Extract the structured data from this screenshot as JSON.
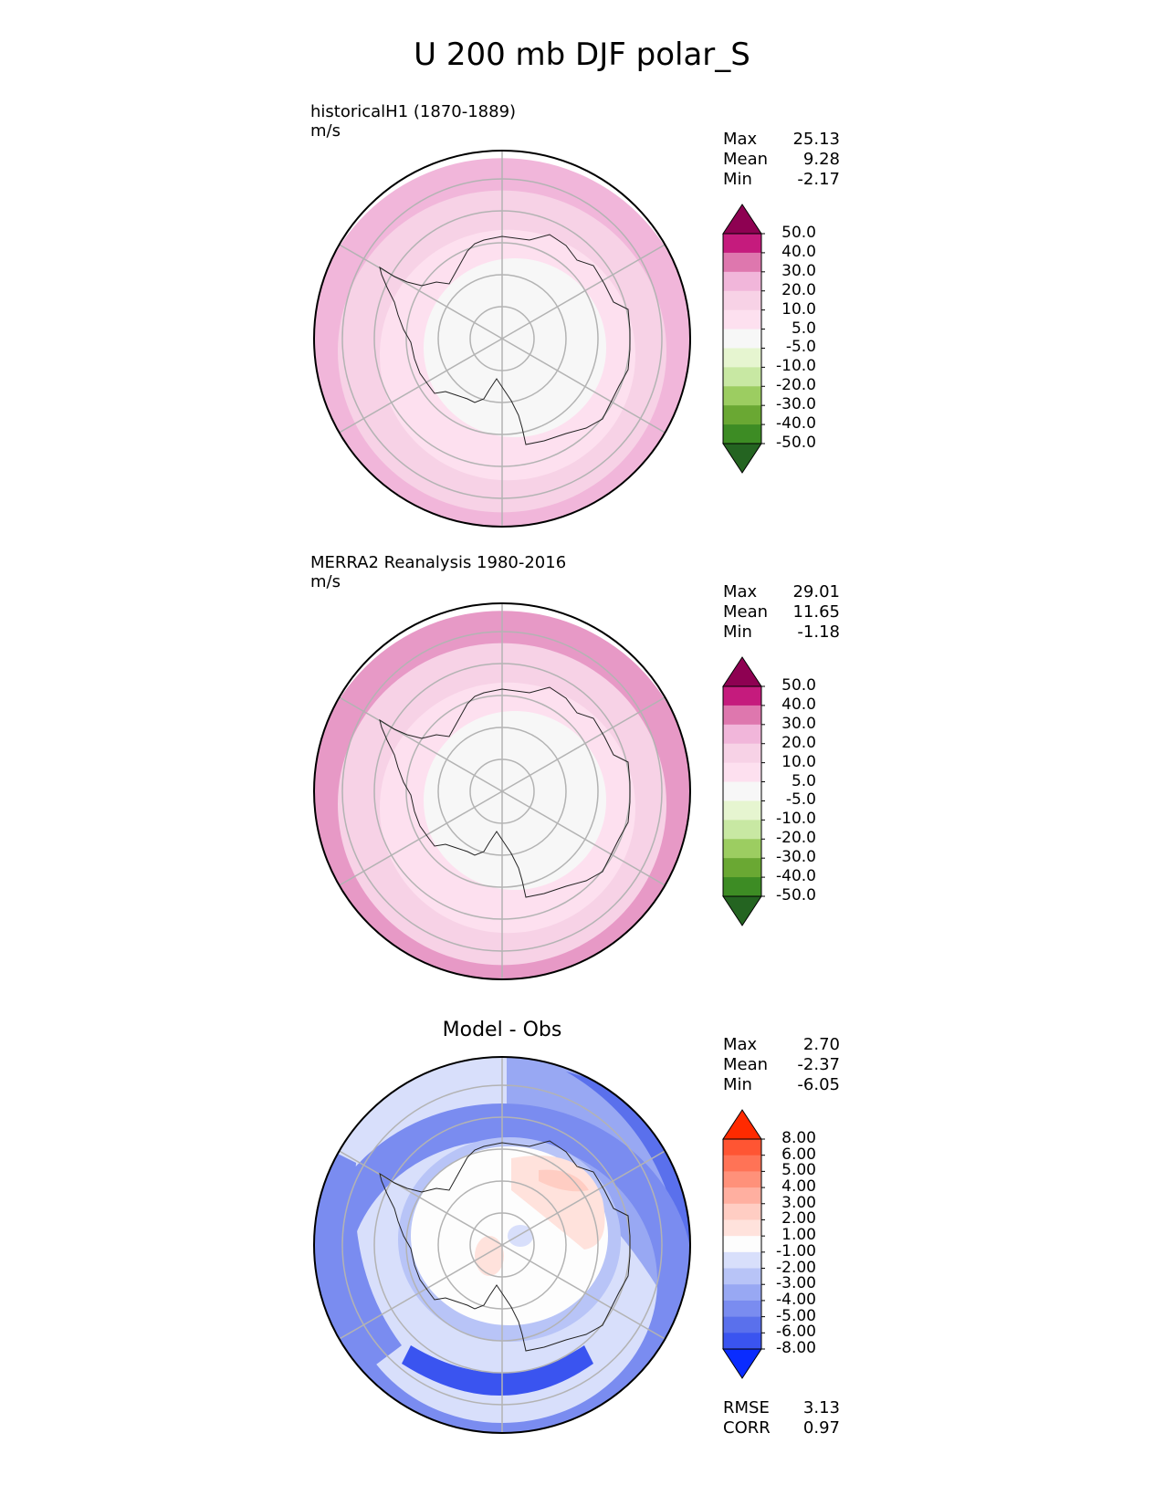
{
  "chart_data": {
    "title": "U 200 mb DJF polar_S",
    "type": "heatmap",
    "projection": "south polar stereographic",
    "panels": [
      {
        "title": "historicalH1 (1870-1889)",
        "units": "m/s",
        "stats": [
          {
            "label": "Max",
            "value": "25.13"
          },
          {
            "label": "Mean",
            "value": "9.28"
          },
          {
            "label": "Min",
            "value": "-2.17"
          }
        ],
        "levels": [
          "50.0",
          "40.0",
          "30.0",
          "20.0",
          "10.0",
          "5.0",
          "-5.0",
          "-10.0",
          "-20.0",
          "-30.0",
          "-40.0",
          "-50.0"
        ],
        "colors": [
          "#8e0152",
          "#c51b7d",
          "#de77ae",
          "#f1b6da",
          "#f7d2e6",
          "#fde0ef",
          "#f7f7f7",
          "#e6f5d0",
          "#c8e8a3",
          "#9ccd61",
          "#6aa833",
          "#3d8c24",
          "#246421"
        ],
        "rings": [
          {
            "value": 5.0,
            "color": "#f7f7f7"
          },
          {
            "value": 10.0,
            "color": "#fde0ef"
          },
          {
            "value": 20.0,
            "color": "#f7d2e6"
          },
          {
            "value": 30.0,
            "color": "#f1b6da"
          }
        ]
      },
      {
        "title": "MERRA2 Reanalysis 1980-2016",
        "units": "m/s",
        "stats": [
          {
            "label": "Max",
            "value": "29.01"
          },
          {
            "label": "Mean",
            "value": "11.65"
          },
          {
            "label": "Min",
            "value": "-1.18"
          }
        ],
        "levels": [
          "50.0",
          "40.0",
          "30.0",
          "20.0",
          "10.0",
          "5.0",
          "-5.0",
          "-10.0",
          "-20.0",
          "-30.0",
          "-40.0",
          "-50.0"
        ],
        "colors": [
          "#8e0152",
          "#c51b7d",
          "#de77ae",
          "#f1b6da",
          "#f7d2e6",
          "#fde0ef",
          "#f7f7f7",
          "#e6f5d0",
          "#c8e8a3",
          "#9ccd61",
          "#6aa833",
          "#3d8c24",
          "#246421"
        ],
        "rings": [
          {
            "value": 5.0,
            "color": "#f7f7f7"
          },
          {
            "value": 10.0,
            "color": "#fde0ef"
          },
          {
            "value": 20.0,
            "color": "#f7d2e6"
          },
          {
            "value": 30.0,
            "color": "#e799c6"
          }
        ]
      },
      {
        "title": "Model - Obs",
        "units": "",
        "stats": [
          {
            "label": "Max",
            "value": "2.70"
          },
          {
            "label": "Mean",
            "value": "-2.37"
          },
          {
            "label": "Min",
            "value": "-6.05"
          }
        ],
        "levels": [
          "8.00",
          "6.00",
          "5.00",
          "4.00",
          "3.00",
          "2.00",
          "1.00",
          "-1.00",
          "-2.00",
          "-3.00",
          "-4.00",
          "-5.00",
          "-6.00",
          "-8.00"
        ],
        "colors": [
          "#ff2a00",
          "#ff5533",
          "#ff7356",
          "#ff917a",
          "#ffafa0",
          "#ffcdc3",
          "#ffe2dc",
          "#fdfdfd",
          "#d8dffb",
          "#b8c4f7",
          "#98a8f3",
          "#7a8cf0",
          "#5a70ec",
          "#3a54f0",
          "#0a2cff"
        ],
        "footer": [
          {
            "label": "RMSE",
            "value": "3.13"
          },
          {
            "label": "CORR",
            "value": "0.97"
          }
        ]
      }
    ]
  }
}
